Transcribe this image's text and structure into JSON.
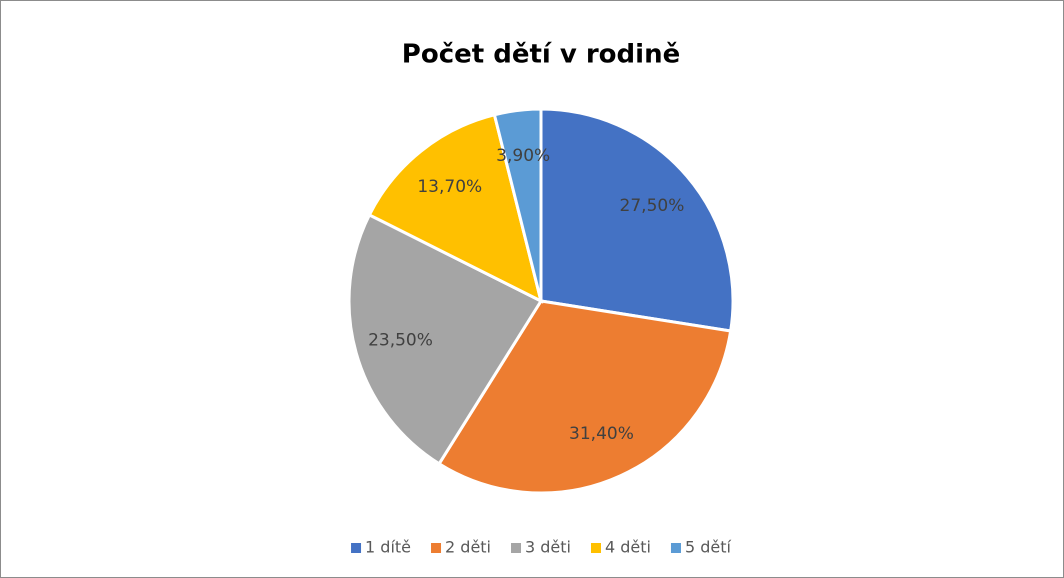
{
  "chart_data": {
    "type": "pie",
    "title": "Počet dětí v rodině",
    "categories": [
      "1 dítě",
      "2 děti",
      "3 děti",
      "4 děti",
      "5 dětí"
    ],
    "values": [
      27.5,
      31.4,
      23.5,
      13.7,
      3.9
    ],
    "value_labels": [
      "27,50%",
      "31,40%",
      "23,50%",
      "13,70%",
      "3,90%"
    ],
    "colors": [
      "#4472c4",
      "#ed7d31",
      "#a5a5a5",
      "#ffc000",
      "#5b9bd5"
    ],
    "legend": "bottom"
  }
}
